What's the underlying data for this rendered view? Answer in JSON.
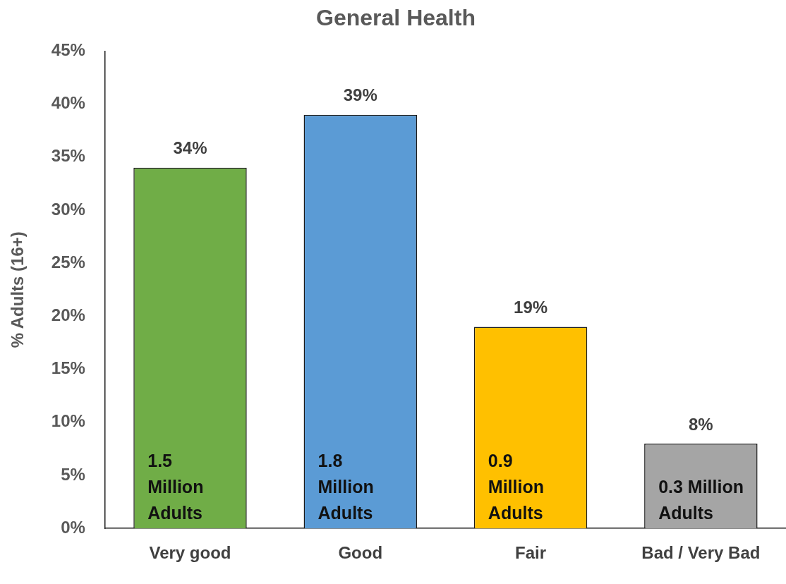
{
  "chart_data": {
    "type": "bar",
    "title": "General Health",
    "ylabel": "% Adults (16+)",
    "categories": [
      "Very good",
      "Good",
      "Fair",
      "Bad / Very Bad"
    ],
    "values": [
      34,
      39,
      19,
      8
    ],
    "colors": [
      "#70ad47",
      "#5b9bd5",
      "#ffc000",
      "#a5a5a5"
    ],
    "value_labels": [
      "34%",
      "39%",
      "19%",
      "8%"
    ],
    "ylim": [
      0,
      45
    ],
    "yticks": [
      {
        "value": 0,
        "label": "0%"
      },
      {
        "value": 5,
        "label": "5%"
      },
      {
        "value": 10,
        "label": "10%"
      },
      {
        "value": 15,
        "label": "15%"
      },
      {
        "value": 20,
        "label": "20%"
      },
      {
        "value": 25,
        "label": "25%"
      },
      {
        "value": 30,
        "label": "30%"
      },
      {
        "value": 35,
        "label": "35%"
      },
      {
        "value": 40,
        "label": "40%"
      },
      {
        "value": 45,
        "label": "45%"
      }
    ],
    "grid": false,
    "legend": false,
    "annotations": [
      "1.5\nMillion\nAdults",
      "1.8\nMillion\nAdults",
      "0.9\nMillion\nAdults",
      "0.3 Million\nAdults"
    ]
  }
}
